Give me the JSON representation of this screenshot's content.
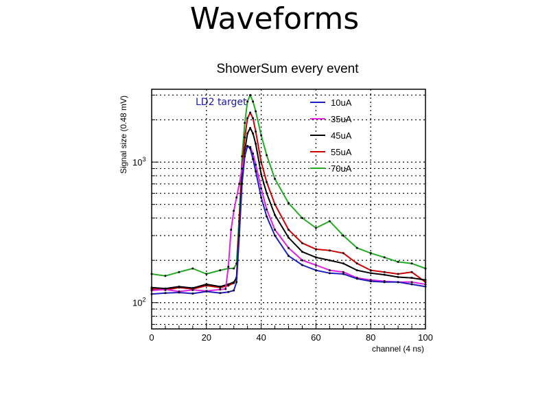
{
  "slide": {
    "title": "Waveforms"
  },
  "chart_data": {
    "type": "line",
    "title": "ShowerSum every event",
    "xlabel": "channel (4 ns)",
    "ylabel": "Signal size (0.48 mV)",
    "xlim": [
      0,
      100
    ],
    "ylim": [
      65,
      3300
    ],
    "yscale": "log",
    "grid": true,
    "legend_position": "top-right",
    "annotation": {
      "text": "LD2 target",
      "color": "#1a1aa6"
    },
    "x_ticks": [
      0,
      20,
      40,
      60,
      80,
      100
    ],
    "y_ticks": [
      {
        "value": 100,
        "base": "10",
        "exp": "2"
      },
      {
        "value": 1000,
        "base": "10",
        "exp": "3"
      }
    ],
    "series": [
      {
        "name": "10uA",
        "color": "#1f1fbf",
        "x": [
          0,
          5,
          10,
          15,
          20,
          25,
          28,
          30,
          31,
          32,
          33,
          34,
          35,
          36,
          37,
          38,
          40,
          42,
          45,
          50,
          55,
          60,
          65,
          70,
          75,
          80,
          85,
          90,
          95,
          100
        ],
        "y": [
          115,
          117,
          118,
          116,
          120,
          117,
          119,
          122,
          140,
          300,
          700,
          1100,
          1300,
          1250,
          1050,
          860,
          560,
          410,
          300,
          215,
          185,
          170,
          162,
          160,
          148,
          142,
          140,
          140,
          135,
          130
        ]
      },
      {
        "name": "35uA",
        "color": "#e020e0",
        "x": [
          0,
          5,
          10,
          15,
          20,
          25,
          27,
          28,
          29,
          30,
          31,
          32,
          33,
          34,
          35,
          36,
          37,
          38,
          40,
          42,
          45,
          50,
          55,
          60,
          65,
          70,
          75,
          80,
          85,
          90,
          95,
          100
        ],
        "y": [
          122,
          124,
          120,
          123,
          121,
          124,
          125,
          180,
          330,
          450,
          560,
          700,
          900,
          1150,
          1300,
          1280,
          1150,
          960,
          650,
          460,
          330,
          245,
          200,
          185,
          170,
          165,
          150,
          145,
          142,
          140,
          140,
          135
        ]
      },
      {
        "name": "45uA",
        "color": "#000000",
        "x": [
          0,
          5,
          10,
          15,
          20,
          25,
          28,
          30,
          31,
          32,
          33,
          34,
          35,
          36,
          37,
          38,
          40,
          42,
          45,
          50,
          55,
          60,
          65,
          70,
          75,
          80,
          85,
          90,
          95,
          100
        ],
        "y": [
          128,
          126,
          130,
          127,
          135,
          130,
          135,
          140,
          150,
          330,
          780,
          1200,
          1600,
          1750,
          1600,
          1350,
          820,
          600,
          420,
          290,
          230,
          210,
          200,
          190,
          170,
          162,
          158,
          152,
          150,
          145
        ]
      },
      {
        "name": "55uA",
        "color": "#cc0000",
        "x": [
          0,
          5,
          10,
          15,
          20,
          25,
          28,
          30,
          31,
          32,
          33,
          34,
          35,
          36,
          37,
          38,
          40,
          42,
          45,
          50,
          55,
          60,
          65,
          70,
          75,
          80,
          85,
          90,
          95,
          100
        ],
        "y": [
          125,
          123,
          128,
          125,
          132,
          128,
          132,
          138,
          150,
          380,
          900,
          1500,
          2050,
          2250,
          2050,
          1650,
          1000,
          720,
          500,
          330,
          265,
          240,
          235,
          225,
          190,
          170,
          165,
          160,
          165,
          140
        ]
      },
      {
        "name": "70uA",
        "color": "#22aa22",
        "x": [
          0,
          5,
          10,
          15,
          20,
          25,
          28,
          30,
          31,
          32,
          33,
          34,
          35,
          36,
          37,
          38,
          40,
          42,
          45,
          50,
          55,
          60,
          65,
          70,
          75,
          80,
          85,
          90,
          95,
          100
        ],
        "y": [
          160,
          155,
          165,
          175,
          160,
          170,
          175,
          175,
          190,
          420,
          1100,
          1900,
          2700,
          3000,
          2700,
          2300,
          1550,
          1120,
          760,
          510,
          400,
          340,
          380,
          300,
          245,
          225,
          210,
          195,
          190,
          175
        ]
      }
    ]
  }
}
